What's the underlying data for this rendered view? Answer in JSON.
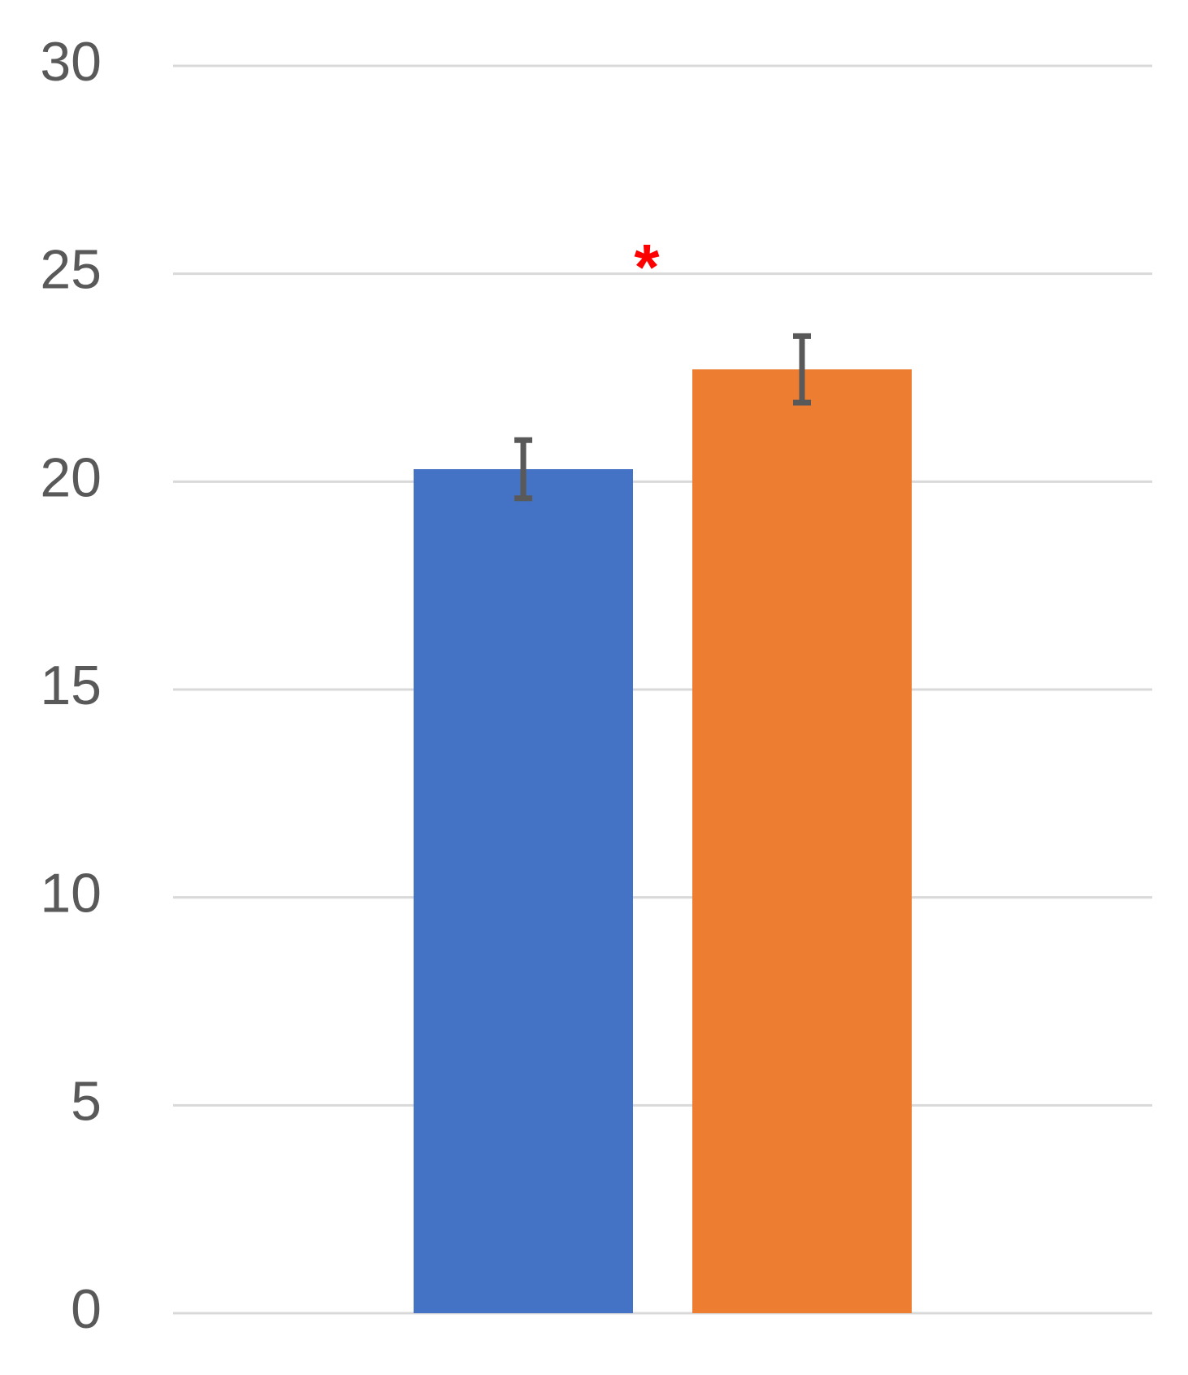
{
  "chart_data": {
    "type": "bar",
    "categories": [
      null
    ],
    "series": [
      {
        "color": "#4472c4",
        "values": [
          20.3
        ],
        "errors": [
          0.7
        ]
      },
      {
        "color": "#ed7d31",
        "values": [
          22.7
        ],
        "errors": [
          0.8
        ]
      }
    ],
    "annotation": {
      "text": "*",
      "color": "#ff0000"
    },
    "ylim": [
      0,
      30
    ],
    "yticks": [
      0,
      5,
      10,
      15,
      20,
      25,
      30
    ],
    "grid": true
  }
}
